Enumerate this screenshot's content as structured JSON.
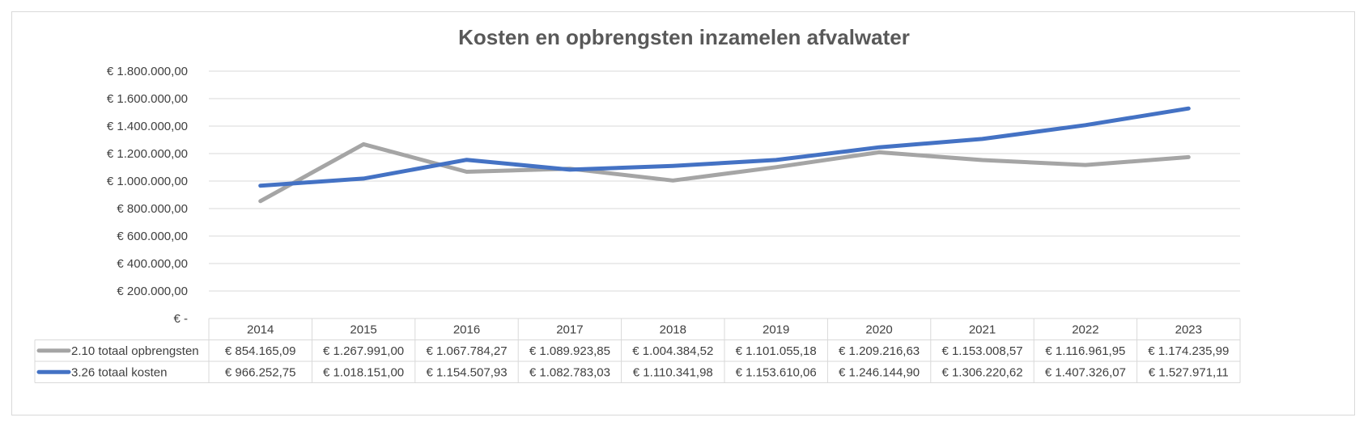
{
  "chart_data": {
    "type": "line",
    "title": "Kosten en opbrengsten inzamelen afvalwater",
    "categories": [
      "2014",
      "2015",
      "2016",
      "2017",
      "2018",
      "2019",
      "2020",
      "2021",
      "2022",
      "2023"
    ],
    "ylim": [
      0,
      1800000
    ],
    "yticks": [
      0,
      200000,
      400000,
      600000,
      800000,
      1000000,
      1200000,
      1400000,
      1600000,
      1800000
    ],
    "ytick_labels": [
      "€ -",
      "€ 200.000,00",
      "€ 400.000,00",
      "€ 600.000,00",
      "€ 800.000,00",
      "€ 1.000.000,00",
      "€ 1.200.000,00",
      "€ 1.400.000,00",
      "€ 1.600.000,00",
      "€ 1.800.000,00"
    ],
    "grid": true,
    "legend": "data-table",
    "series": [
      {
        "name": "2.10 totaal opbrengsten",
        "color": "#a5a5a5",
        "values": [
          854165.09,
          1267991.0,
          1067784.27,
          1089923.85,
          1004384.52,
          1101055.18,
          1209216.63,
          1153008.57,
          1116961.95,
          1174235.99
        ],
        "labels": [
          "€ 854.165,09",
          "€ 1.267.991,00",
          "€ 1.067.784,27",
          "€ 1.089.923,85",
          "€ 1.004.384,52",
          "€ 1.101.055,18",
          "€ 1.209.216,63",
          "€ 1.153.008,57",
          "€ 1.116.961,95",
          "€ 1.174.235,99"
        ]
      },
      {
        "name": "3.26 totaal kosten",
        "color": "#4472c4",
        "values": [
          966252.75,
          1018151.0,
          1154507.93,
          1082783.03,
          1110341.98,
          1153610.06,
          1246144.9,
          1306220.62,
          1407326.07,
          1527971.11
        ],
        "labels": [
          "€ 966.252,75",
          "€ 1.018.151,00",
          "€ 1.154.507,93",
          "€ 1.082.783,03",
          "€ 1.110.341,98",
          "€ 1.153.610,06",
          "€ 1.246.144,90",
          "€ 1.306.220,62",
          "€ 1.407.326,07",
          "€ 1.527.971,11"
        ]
      }
    ]
  }
}
